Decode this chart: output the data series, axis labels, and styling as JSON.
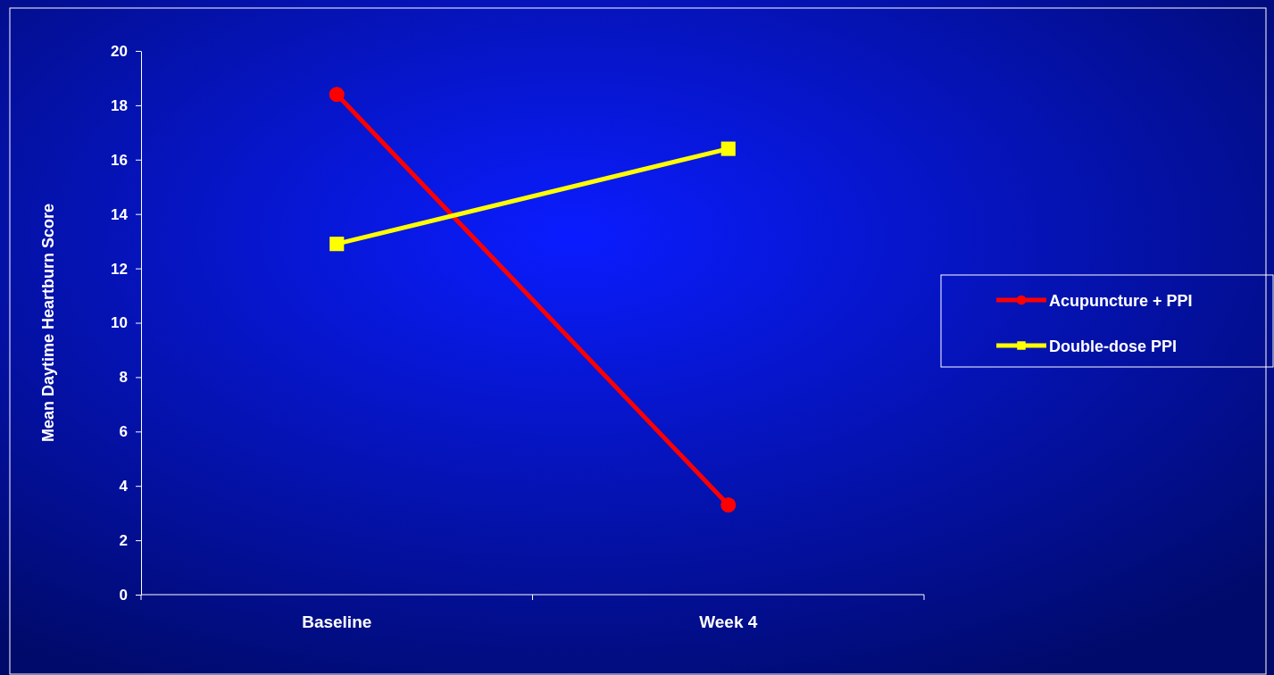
{
  "chart_data": {
    "type": "line",
    "ylabel": "Mean Daytime Heartburn Score",
    "categories": [
      "Baseline",
      "Week 4"
    ],
    "series": [
      {
        "name": "Acupuncture + PPI",
        "color": "#ff0000",
        "marker": "circle",
        "values": [
          18.4,
          3.3
        ]
      },
      {
        "name": "Double-dose PPI",
        "color": "#ffff00",
        "marker": "square",
        "values": [
          12.9,
          16.4
        ]
      }
    ],
    "ylim": [
      0,
      20
    ],
    "yticks": [
      0,
      2,
      4,
      6,
      8,
      10,
      12,
      14,
      16,
      18,
      20
    ],
    "legend": "right"
  }
}
